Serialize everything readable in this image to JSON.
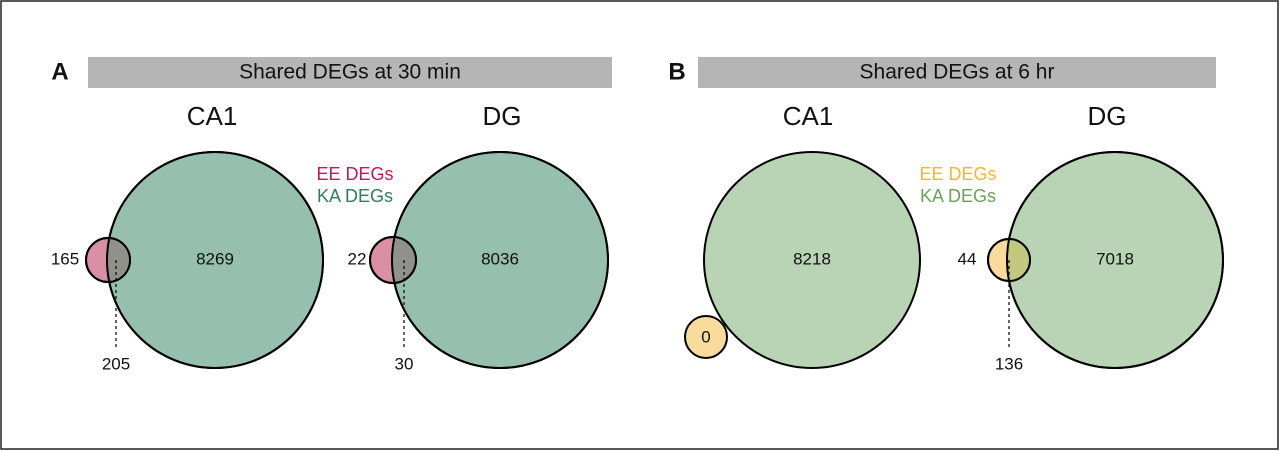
{
  "panels": [
    {
      "label": "A",
      "title": "Shared DEGs at 30 min",
      "legend": [
        "EE DEGs",
        "KA DEGs"
      ],
      "diagrams": [
        {
          "title": "CA1",
          "only_small": 165,
          "only_large": 8269,
          "shared": 205
        },
        {
          "title": "DG",
          "only_small": 22,
          "only_large": 8036,
          "shared": 30
        }
      ]
    },
    {
      "label": "B",
      "title": "Shared DEGs at 6 hr",
      "legend": [
        "EE DEGs",
        "KA DEGs"
      ],
      "diagrams": [
        {
          "title": "CA1",
          "only_small": 0,
          "only_large": 8218
        },
        {
          "title": "DG",
          "only_small": 44,
          "only_large": 7018,
          "shared": 136
        }
      ]
    }
  ]
}
